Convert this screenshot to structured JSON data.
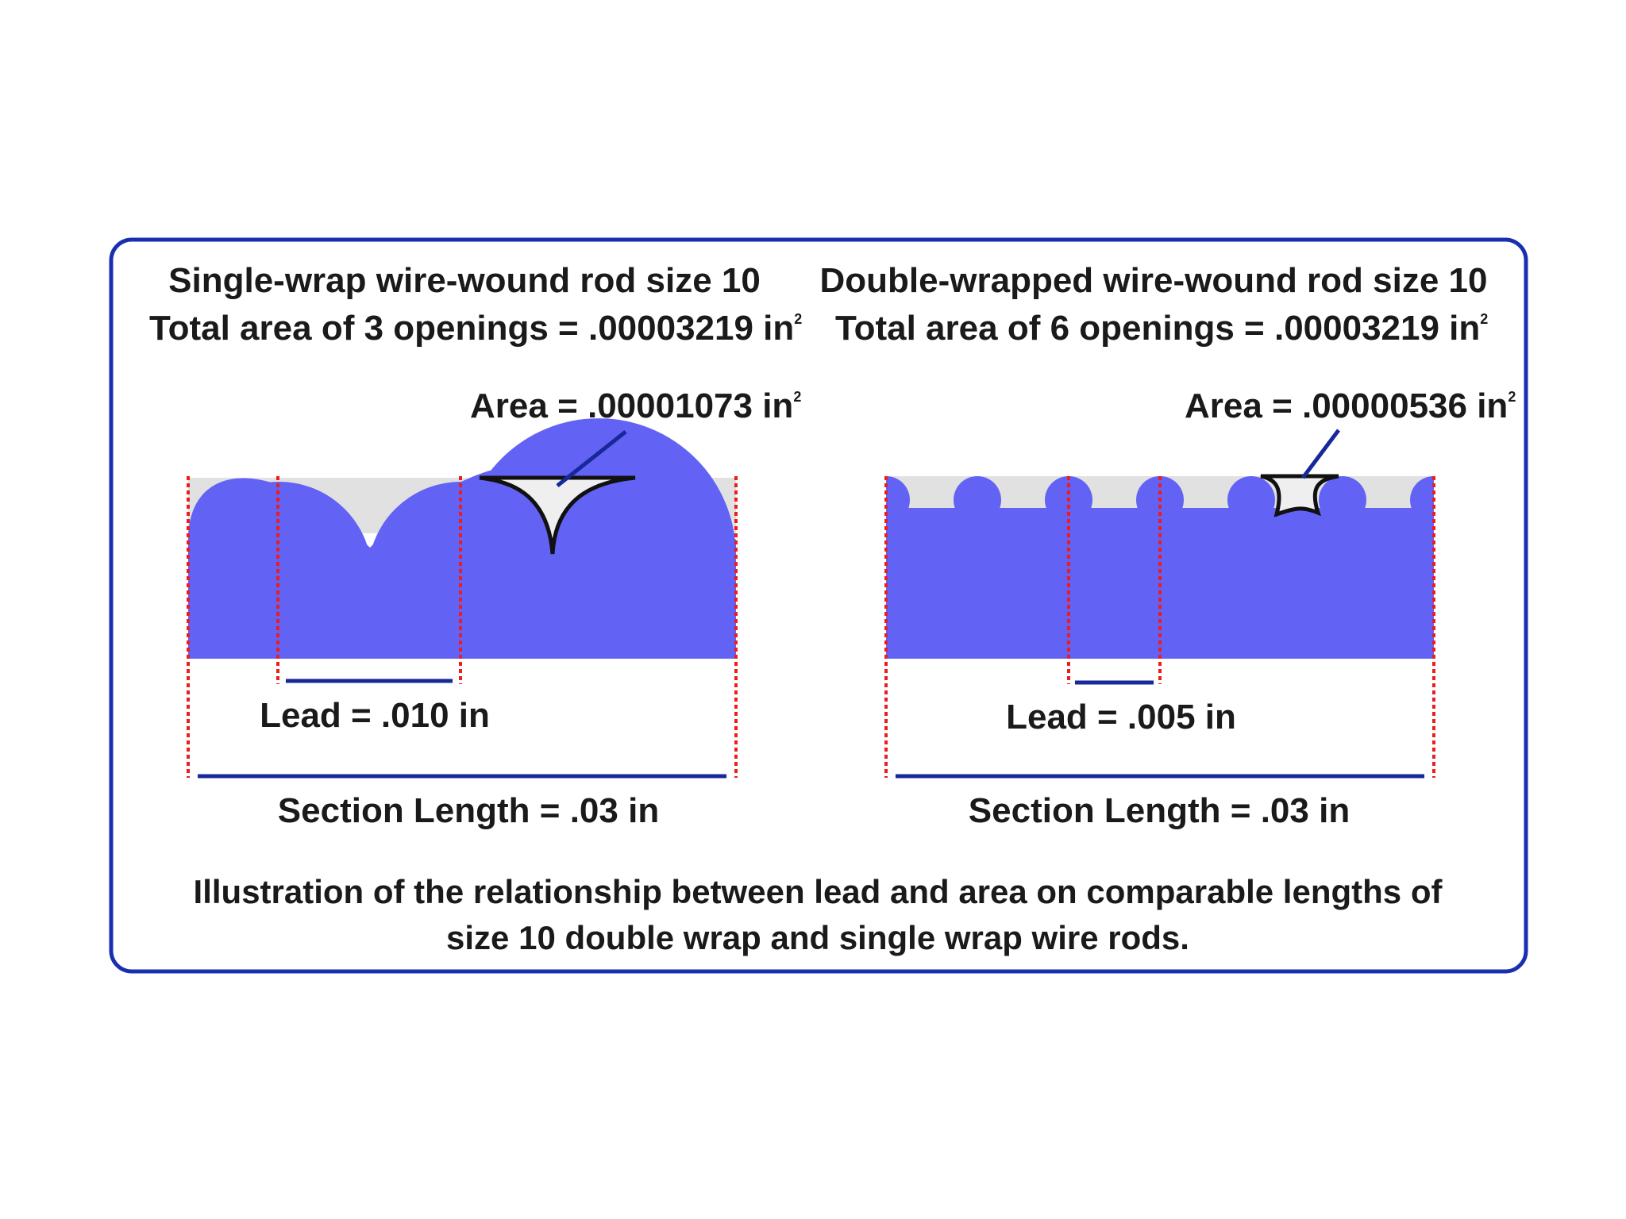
{
  "colors": {
    "border": "#1a2fb0",
    "wire_blue": "#6262f5",
    "opening_gray": "#e1e1e1",
    "arrow_navy": "#16289a",
    "dashed_red": "#ee1c1c",
    "text": "#1a1a1a"
  },
  "left": {
    "title": "Single-wrap wire-wound rod size 10",
    "total_prefix": "Total area of  3 openings = .00003219 in",
    "total_sup": "2",
    "area_prefix": "Area = .00001073 in",
    "area_sup": "2",
    "lead": "Lead = .010 in",
    "section": "Section Length = .03 in"
  },
  "right": {
    "title": "Double-wrapped wire-wound rod size 10",
    "total_prefix": "Total area of  6 openings = .00003219 in",
    "total_sup": "2",
    "area_prefix": "Area = .00000536 in",
    "area_sup": "2",
    "lead": "Lead = .005 in",
    "section": "Section Length = .03 in"
  },
  "caption": {
    "line1": "Illustration of the relationship between lead and area on comparable lengths of",
    "line2": "size 10 double wrap and single wrap wire rods."
  }
}
